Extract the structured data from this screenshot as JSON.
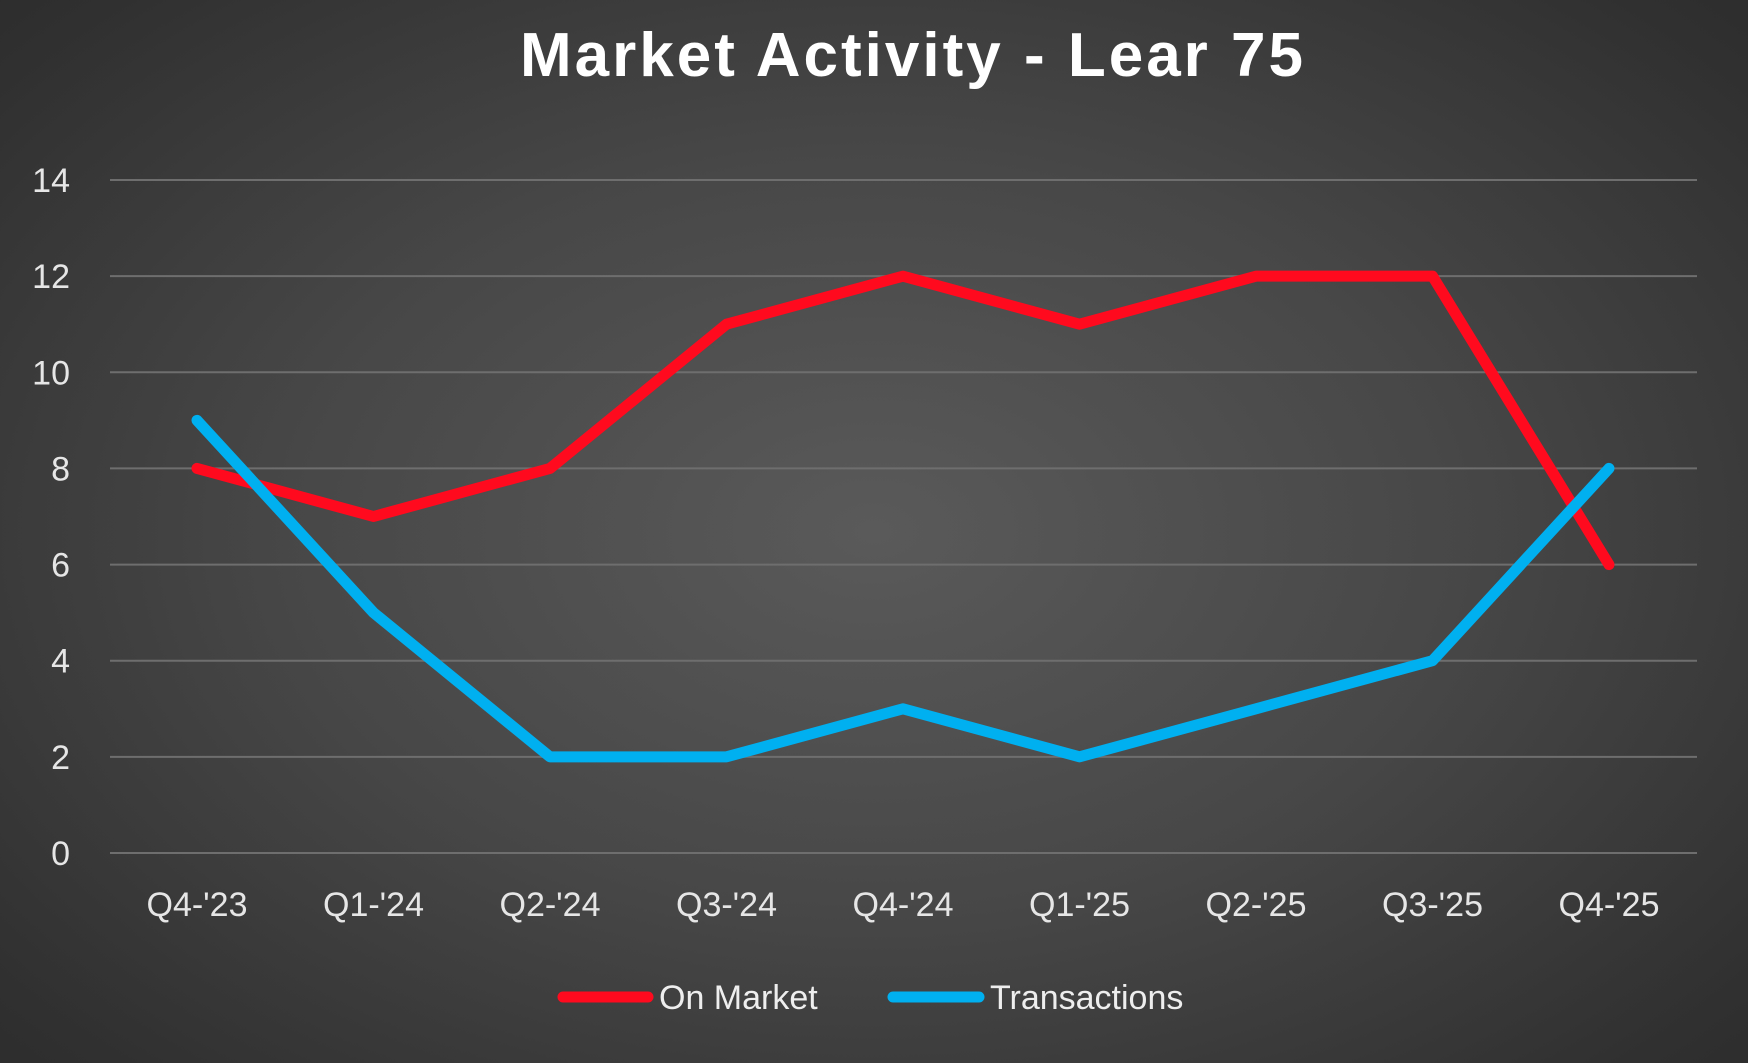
{
  "chart_data": {
    "type": "line",
    "title": "Market Activity - Lear 75",
    "xlabel": "",
    "ylabel": "",
    "categories": [
      "Q4-'23",
      "Q1-'24",
      "Q2-'24",
      "Q3-'24",
      "Q4-'24",
      "Q1-'25",
      "Q2-'25",
      "Q3-'25",
      "Q4-'25"
    ],
    "ylim": [
      0,
      14
    ],
    "yticks": [
      0,
      2,
      4,
      6,
      8,
      10,
      12,
      14
    ],
    "grid": true,
    "legend_position": "bottom",
    "series": [
      {
        "name": "On Market",
        "color": "#ff0a1e",
        "values": [
          8,
          7,
          8,
          11,
          12,
          11,
          12,
          12,
          6
        ]
      },
      {
        "name": "Transactions",
        "color": "#00b0f0",
        "values": [
          9,
          5,
          2,
          2,
          3,
          2,
          3,
          4,
          8
        ]
      }
    ]
  }
}
